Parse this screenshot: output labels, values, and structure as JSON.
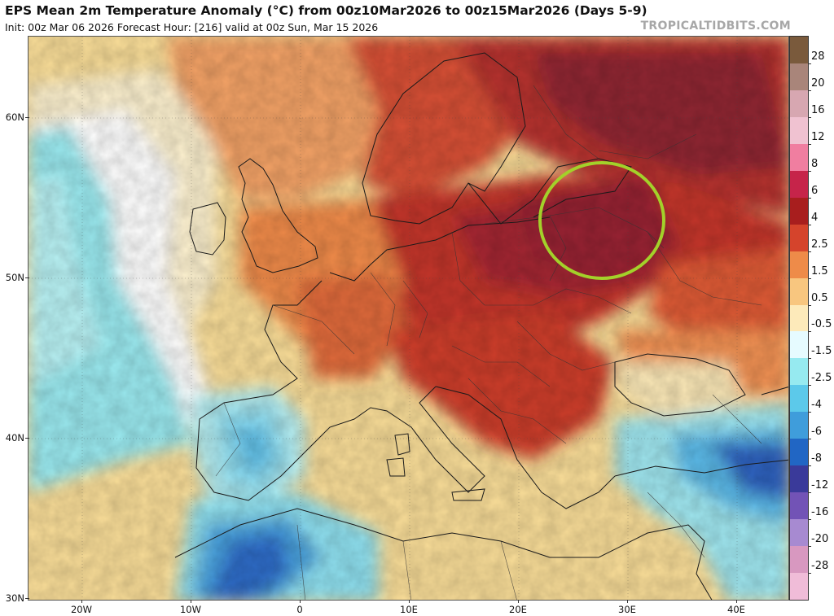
{
  "header": {
    "title": "EPS Mean 2m Temperature Anomaly (°C) from 00z10Mar2026 to 00z15Mar2026 (Days 5-9)",
    "subtitle": "Init: 00z Mar 06 2026   Forecast Hour: [216]   valid at 00z Sun, Mar 15 2026",
    "brand": "TROPICALTIDBITS.COM"
  },
  "axes": {
    "latitude_labels": [
      "60N",
      "50N",
      "40N",
      "30N"
    ],
    "longitude_labels": [
      "20W",
      "10W",
      "0",
      "10E",
      "20E",
      "30E",
      "40E"
    ]
  },
  "colorbar": {
    "labels": [
      "28",
      "20",
      "16",
      "12",
      "8",
      "6",
      "4",
      "2.5",
      "1.5",
      "0.5",
      "-0.5",
      "-1.5",
      "-2.5",
      "-4",
      "-6",
      "-8",
      "-12",
      "-16",
      "-20",
      "-28"
    ],
    "colors": [
      "#7a5a3c",
      "#a9857a",
      "#d7a7b1",
      "#f0c2d1",
      "#f07ea0",
      "#c6244a",
      "#a81e1e",
      "#d5442c",
      "#ee8b49",
      "#f8c67f",
      "#fdeaba",
      "#e6fbff",
      "#96eaf0",
      "#5cc9ea",
      "#3f9ddb",
      "#2166c4",
      "#3a3a9a",
      "#7253b6",
      "#a78ad1",
      "#d898c0",
      "#f0bcd8"
    ],
    "top_color": "#a9857a",
    "bottom_color": "#f0bcd8"
  },
  "annotation": {
    "shape": "circle",
    "color": "#a3d12a",
    "location": "Belarus"
  }
}
